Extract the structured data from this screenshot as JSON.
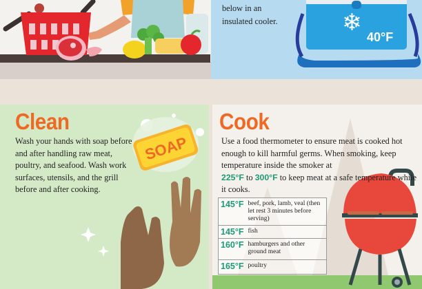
{
  "shop": {
    "illustration": "shopping-basket-with-groceries"
  },
  "chill": {
    "text_lines": [
      "below in an",
      "insulated cooler."
    ],
    "cooler_temp": "40°F",
    "icon": "snowflake-icon"
  },
  "clean": {
    "title": "Clean",
    "text": "Wash your hands with soap before and after handling raw meat, poultry, and seafood. Wash work surfaces, utensils, and the grill before and after cooking.",
    "soap_label": "SOAP"
  },
  "cook": {
    "title": "Cook",
    "text_before": "Use a food thermometer to ensure meat is cooked hot enough to kill harmful germs. When smoking, keep temperature inside the smoker at",
    "temp_low": "225°F",
    "to": "to",
    "temp_high": "300°F",
    "text_after": "to keep meat at a safe temperature while it cooks.",
    "table": [
      {
        "temp": "145°F",
        "food": "beef, pork, lamb, veal (then let rest 3 minutes before serving)"
      },
      {
        "temp": "145°F",
        "food": "fish"
      },
      {
        "temp": "160°F",
        "food": "hamburgers and other ground meat"
      },
      {
        "temp": "165°F",
        "food": "poultry"
      }
    ]
  },
  "colors": {
    "heading": "#ee6a24",
    "temp_highlight": "#1f9a78",
    "clean_bg": "#d4eac7",
    "chill_bg": "#b6daf0",
    "cook_bg": "#f4f1ec"
  }
}
